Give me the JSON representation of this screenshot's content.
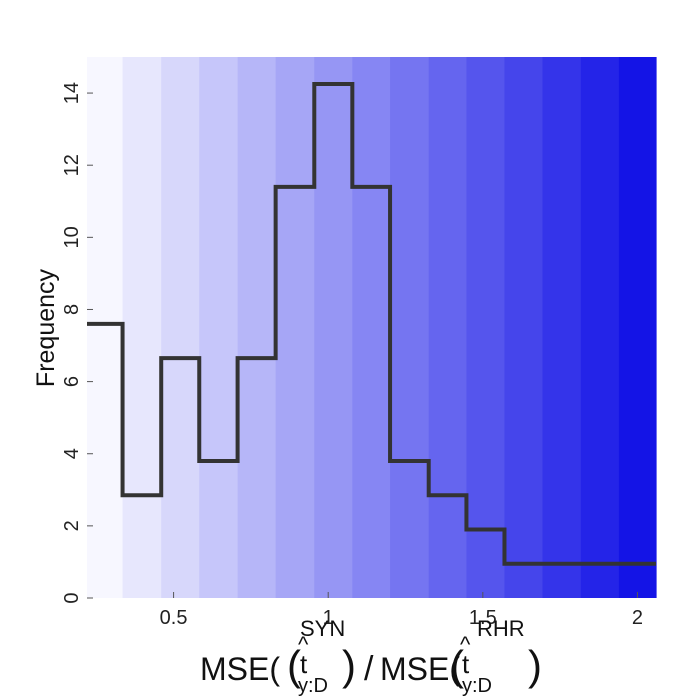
{
  "chart_data": {
    "type": "bar",
    "style": "stairs",
    "ylabel": "Frequency",
    "xlabel": {
      "prefix": "MSE(",
      "hat_var": "t",
      "sub": "y:D",
      "sup_left": "SYN",
      "sup_right": "RHR",
      "separator": ")/MSE(",
      "suffix": ")"
    },
    "xlim": [
      0.22,
      2.06
    ],
    "ylim": [
      0,
      15
    ],
    "xticks": [
      0.5,
      1,
      1.5,
      2
    ],
    "xtick_labels": [
      "0.5",
      "1",
      "1.5",
      "2"
    ],
    "yticks": [
      0,
      2,
      4,
      6,
      8,
      10,
      12,
      14
    ],
    "ytick_labels": [
      "0",
      "2",
      "4",
      "6",
      "8",
      "10",
      "12",
      "14"
    ],
    "bin_edges": [
      0.22,
      0.335,
      0.46,
      0.583,
      0.707,
      0.83,
      0.955,
      1.078,
      1.2,
      1.325,
      1.447,
      1.57,
      1.693,
      1.817,
      1.94,
      2.06
    ],
    "values": [
      7.6,
      2.85,
      6.65,
      3.8,
      6.65,
      11.4,
      14.25,
      11.4,
      3.8,
      2.85,
      1.9,
      0.95,
      0.95,
      0.95,
      0.95
    ],
    "grid": false,
    "line_color": "#333333",
    "background_gradient": [
      "#f7f7ff",
      "#1414e6"
    ]
  }
}
